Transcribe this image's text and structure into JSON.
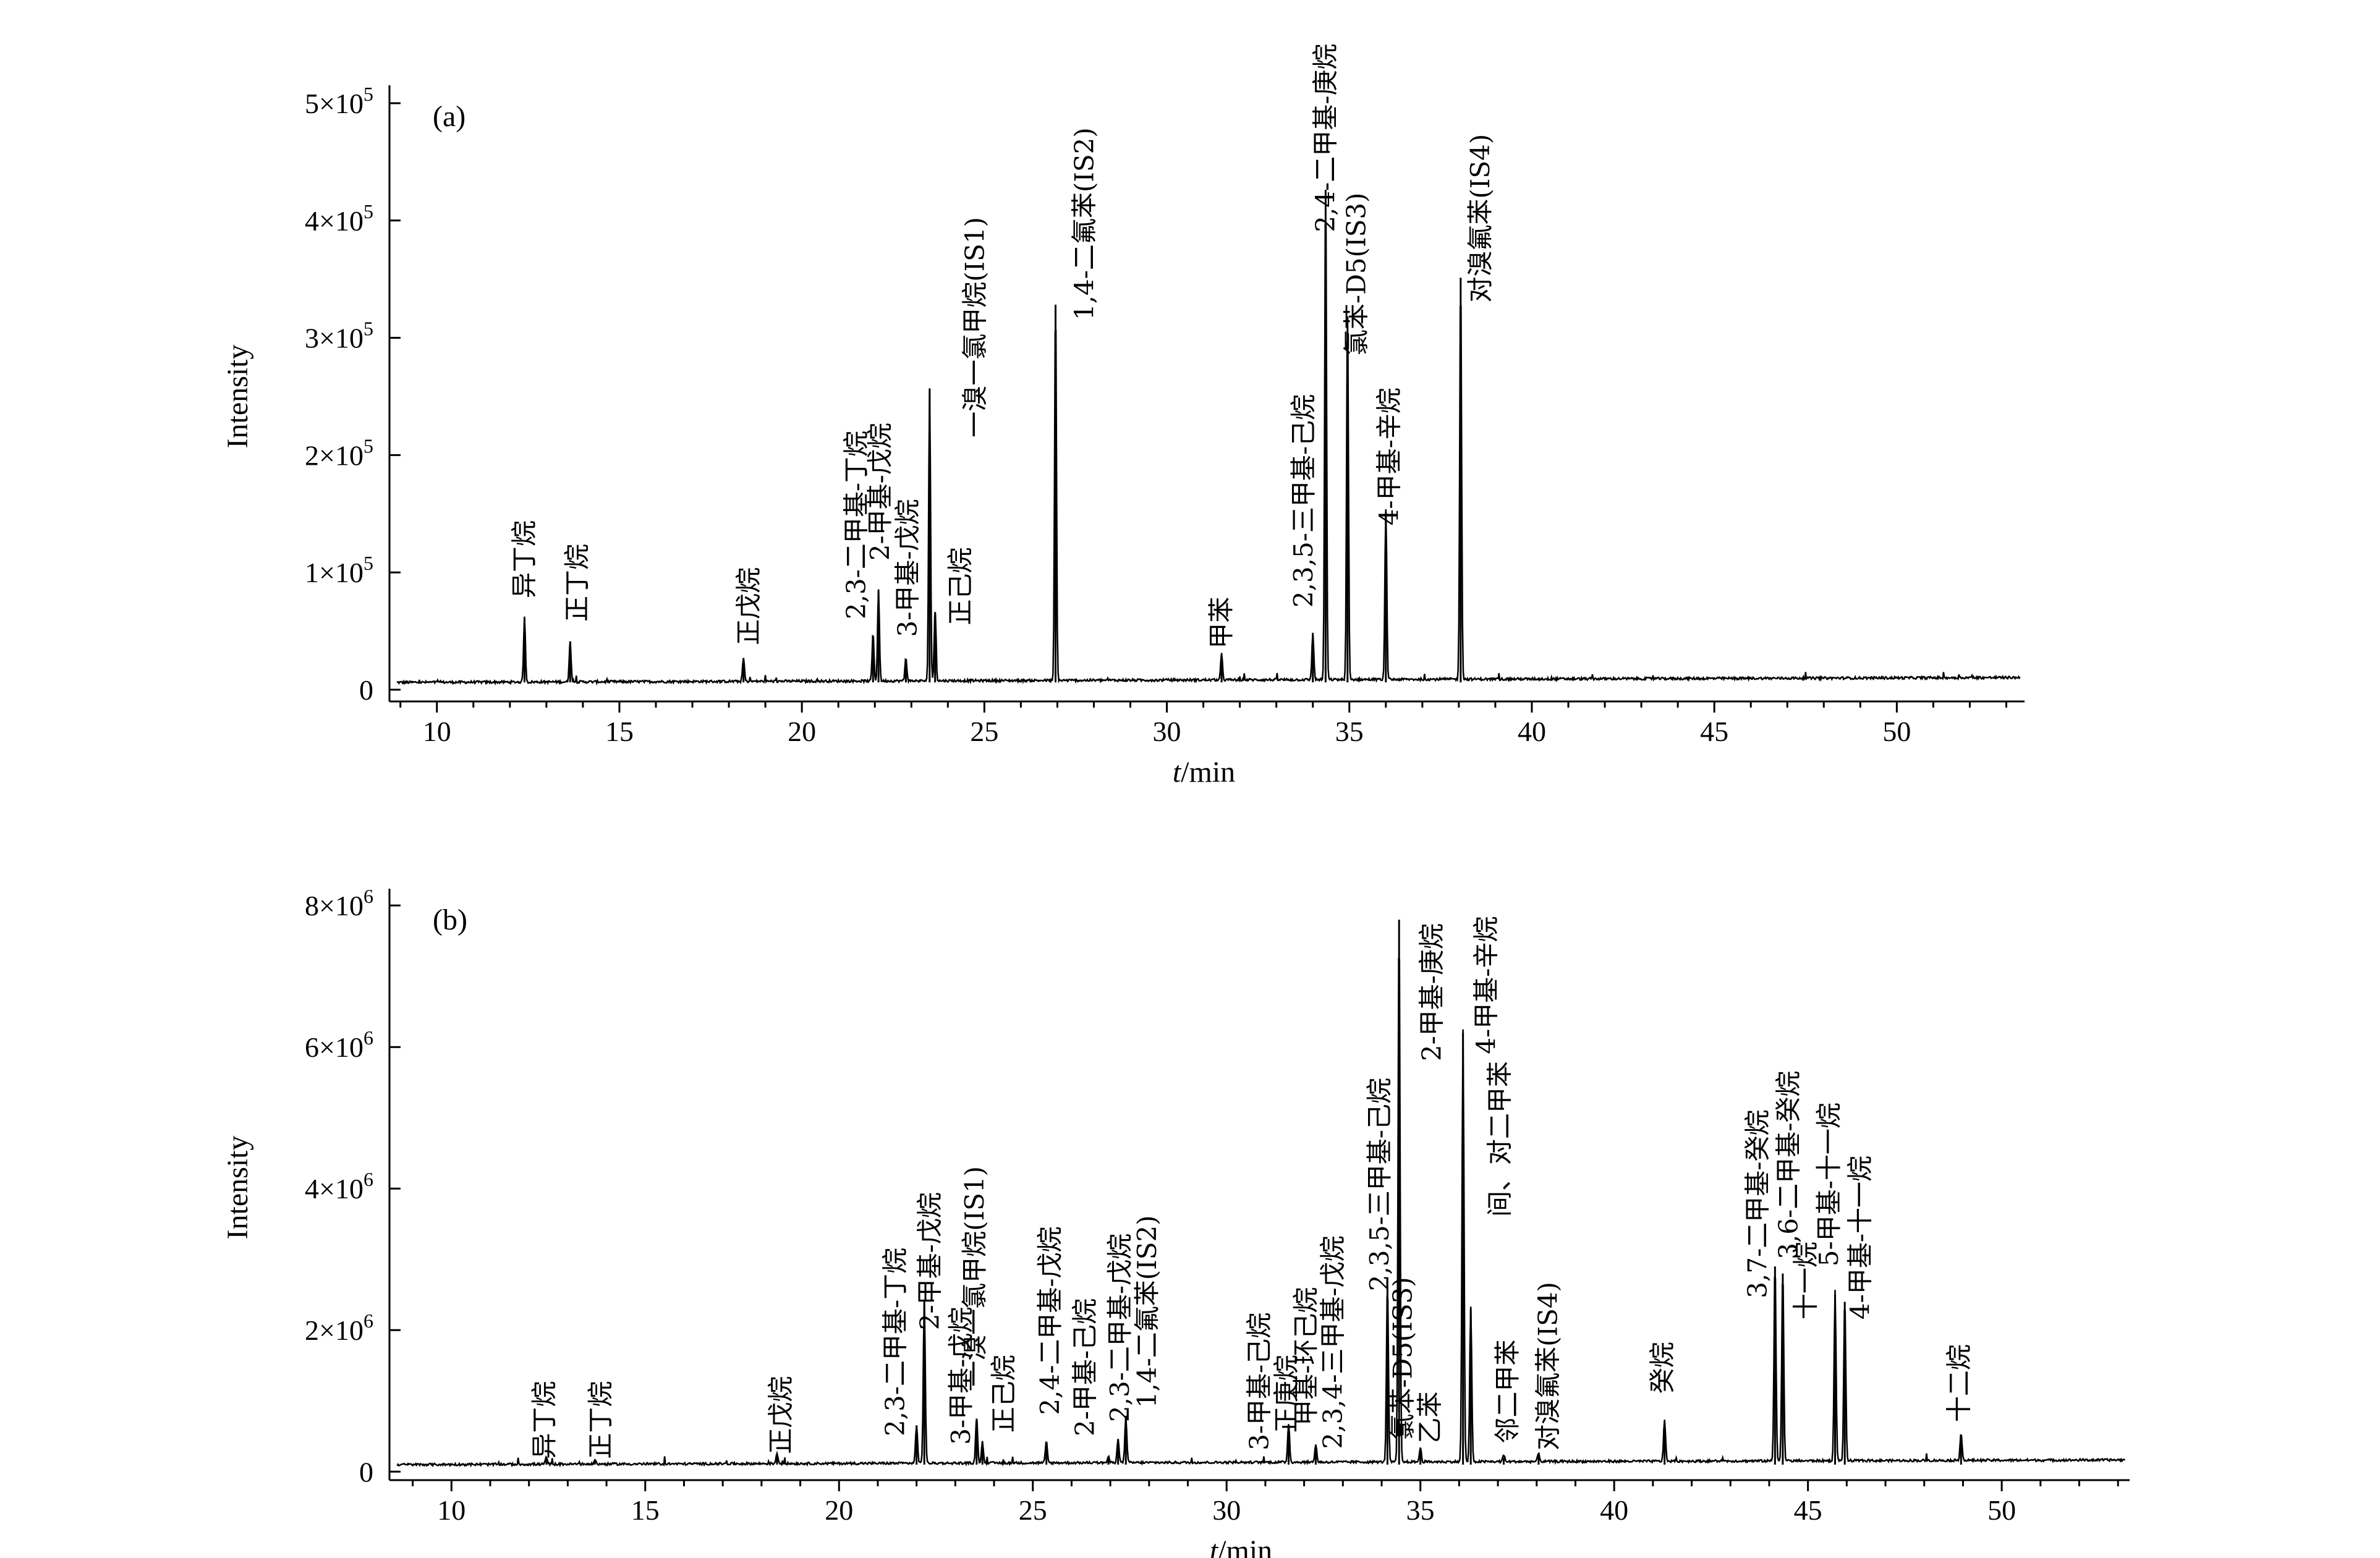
{
  "chart_data": [
    {
      "type": "line",
      "panel_label": "(a)",
      "xlabel_italic": "t",
      "xlabel_rest": "/min",
      "ylabel": "Intensity",
      "xlim": [
        8.7,
        53.5
      ],
      "ylim": [
        -10000,
        510000
      ],
      "xticks": [
        10,
        15,
        20,
        25,
        30,
        35,
        40,
        45,
        50
      ],
      "yticks": [
        {
          "value": 0,
          "label": "0",
          "base": "",
          "exp": ""
        },
        {
          "value": 100000,
          "label": "",
          "base": "1×10",
          "exp": "5"
        },
        {
          "value": 200000,
          "label": "",
          "base": "2×10",
          "exp": "5"
        },
        {
          "value": 300000,
          "label": "",
          "base": "3×10",
          "exp": "5"
        },
        {
          "value": 400000,
          "label": "",
          "base": "4×10",
          "exp": "5"
        },
        {
          "value": 500000,
          "label": "",
          "base": "5×10",
          "exp": "5"
        }
      ],
      "peaks": [
        {
          "x": 12.4,
          "y": 55000
        },
        {
          "x": 13.65,
          "y": 35000
        },
        {
          "x": 18.4,
          "y": 20000
        },
        {
          "x": 21.95,
          "y": 40000
        },
        {
          "x": 22.1,
          "y": 78000
        },
        {
          "x": 22.85,
          "y": 20000
        },
        {
          "x": 23.5,
          "y": 250000
        },
        {
          "x": 23.65,
          "y": 60000
        },
        {
          "x": 26.95,
          "y": 322000
        },
        {
          "x": 31.5,
          "y": 22000
        },
        {
          "x": 34.0,
          "y": 40000
        },
        {
          "x": 34.35,
          "y": 420000
        },
        {
          "x": 34.95,
          "y": 312000
        },
        {
          "x": 36.0,
          "y": 145000
        },
        {
          "x": 38.05,
          "y": 345000
        }
      ],
      "annotations": [
        {
          "text": "异丁烷",
          "x": 12.45,
          "y": 78000
        },
        {
          "text": "正丁烷",
          "x": 13.9,
          "y": 58000
        },
        {
          "text": "正戊烷",
          "x": 18.6,
          "y": 38000
        },
        {
          "text": "2,3-二甲基-丁烷",
          "x": 21.55,
          "y": 60000
        },
        {
          "text": "2-甲基-戊烷",
          "x": 22.2,
          "y": 110000
        },
        {
          "text": "3-甲基-戊烷",
          "x": 22.95,
          "y": 45000
        },
        {
          "text": "正己烷",
          "x": 24.4,
          "y": 55000
        },
        {
          "text": "一溴一氯甲烷(IS1)",
          "x": 24.8,
          "y": 215000
        },
        {
          "text": "1,4-二氟苯(IS2)",
          "x": 27.8,
          "y": 315000
        },
        {
          "text": "甲苯",
          "x": 31.55,
          "y": 35000
        },
        {
          "text": "2,3,5-三甲基-己烷",
          "x": 33.8,
          "y": 70000
        },
        {
          "text": "2,4-二甲基-庚烷",
          "x": 34.4,
          "y": 390000
        },
        {
          "text": "氯苯-D5(IS3)",
          "x": 35.25,
          "y": 285000
        },
        {
          "text": "4-甲基-辛烷",
          "x": 36.15,
          "y": 140000
        },
        {
          "text": "对溴氟苯(IS4)",
          "x": 38.65,
          "y": 330000
        }
      ]
    },
    {
      "type": "line",
      "panel_label": "(b)",
      "xlabel_italic": "t",
      "xlabel_rest": "/min",
      "ylabel": "Intensity",
      "xlim": [
        8.4,
        53.3
      ],
      "ylim": [
        -120000,
        8150000
      ],
      "xticks": [
        10,
        15,
        20,
        25,
        30,
        35,
        40,
        45,
        50
      ],
      "yticks": [
        {
          "value": 0,
          "label": "0",
          "base": "",
          "exp": ""
        },
        {
          "value": 2000000,
          "label": "",
          "base": "2×10",
          "exp": "6"
        },
        {
          "value": 4000000,
          "label": "",
          "base": "4×10",
          "exp": "6"
        },
        {
          "value": 6000000,
          "label": "",
          "base": "6×10",
          "exp": "6"
        },
        {
          "value": 8000000,
          "label": "",
          "base": "8×10",
          "exp": "6"
        }
      ],
      "peaks": [
        {
          "x": 12.45,
          "y": 100000
        },
        {
          "x": 13.7,
          "y": 60000
        },
        {
          "x": 18.4,
          "y": 150000
        },
        {
          "x": 22.0,
          "y": 550000
        },
        {
          "x": 22.2,
          "y": 2300000
        },
        {
          "x": 23.55,
          "y": 650000
        },
        {
          "x": 23.7,
          "y": 300000
        },
        {
          "x": 25.35,
          "y": 300000
        },
        {
          "x": 26.95,
          "y": 80000
        },
        {
          "x": 27.2,
          "y": 350000
        },
        {
          "x": 27.4,
          "y": 650000
        },
        {
          "x": 31.6,
          "y": 550000
        },
        {
          "x": 32.3,
          "y": 250000
        },
        {
          "x": 34.15,
          "y": 2500000
        },
        {
          "x": 34.45,
          "y": 7700000
        },
        {
          "x": 35.0,
          "y": 200000
        },
        {
          "x": 36.1,
          "y": 6100000
        },
        {
          "x": 36.3,
          "y": 2200000
        },
        {
          "x": 37.15,
          "y": 100000
        },
        {
          "x": 38.05,
          "y": 120000
        },
        {
          "x": 41.3,
          "y": 600000
        },
        {
          "x": 44.15,
          "y": 2800000
        },
        {
          "x": 44.35,
          "y": 2700000
        },
        {
          "x": 45.7,
          "y": 2400000
        },
        {
          "x": 45.95,
          "y": 2300000
        },
        {
          "x": 48.95,
          "y": 400000
        }
      ],
      "annotations": [
        {
          "text": "异丁烷",
          "x": 12.45,
          "y": 180000
        },
        {
          "text": "正丁烷",
          "x": 13.9,
          "y": 180000
        },
        {
          "text": "正戊烷",
          "x": 18.55,
          "y": 250000
        },
        {
          "text": "2,3-二甲基-丁烷",
          "x": 21.5,
          "y": 500000
        },
        {
          "text": "2-甲基-戊烷",
          "x": 22.4,
          "y": 2000000
        },
        {
          "text": "3-甲基-戊烷",
          "x": 23.2,
          "y": 380000
        },
        {
          "text": "一溴一氯甲烷(IS1)",
          "x": 23.55,
          "y": 1200000
        },
        {
          "text": "正己烷",
          "x": 24.3,
          "y": 550000
        },
        {
          "text": "2,4-二甲基-戊烷",
          "x": 25.5,
          "y": 800000
        },
        {
          "text": "2-甲基-己烷",
          "x": 26.4,
          "y": 500000
        },
        {
          "text": "2,3-二甲基-戊烷",
          "x": 27.3,
          "y": 700000
        },
        {
          "text": "1,4-二氟苯(IS2)",
          "x": 28.0,
          "y": 900000
        },
        {
          "text": "3-甲基-己烷",
          "x": 30.9,
          "y": 300000
        },
        {
          "text": "正庚烷",
          "x": 31.6,
          "y": 550000
        },
        {
          "text": "甲基-环己烷",
          "x": 32.1,
          "y": 650000
        },
        {
          "text": "2,3,4-三甲基-戊烷",
          "x": 32.8,
          "y": 320000
        },
        {
          "text": "2,3,5-三甲基-己烷",
          "x": 34.0,
          "y": 2550000
        },
        {
          "text": "氯苯-D5(IS3)",
          "x": 34.6,
          "y": 450000
        },
        {
          "text": "2-甲基-庚烷",
          "x": 35.35,
          "y": 5800000
        },
        {
          "text": "乙苯",
          "x": 35.3,
          "y": 400000
        },
        {
          "text": "4-甲基-辛烷",
          "x": 36.75,
          "y": 5900000
        },
        {
          "text": "间、对二甲苯",
          "x": 37.1,
          "y": 3600000
        },
        {
          "text": "邻二甲苯",
          "x": 37.3,
          "y": 400000
        },
        {
          "text": "对溴氟苯(IS4)",
          "x": 38.35,
          "y": 300000
        },
        {
          "text": "癸烷",
          "x": 41.3,
          "y": 1100000
        },
        {
          "text": "3,7-二甲基-癸烷",
          "x": 43.75,
          "y": 2450000
        },
        {
          "text": "3,6-二甲基-癸烷",
          "x": 44.55,
          "y": 3000000
        },
        {
          "text": "十一烷",
          "x": 45.0,
          "y": 2150000
        },
        {
          "text": "5-甲基-十一烷",
          "x": 45.6,
          "y": 2900000
        },
        {
          "text": "4-甲基-十一烷",
          "x": 46.4,
          "y": 2150000
        },
        {
          "text": "十二烷",
          "x": 48.95,
          "y": 700000
        }
      ]
    }
  ]
}
